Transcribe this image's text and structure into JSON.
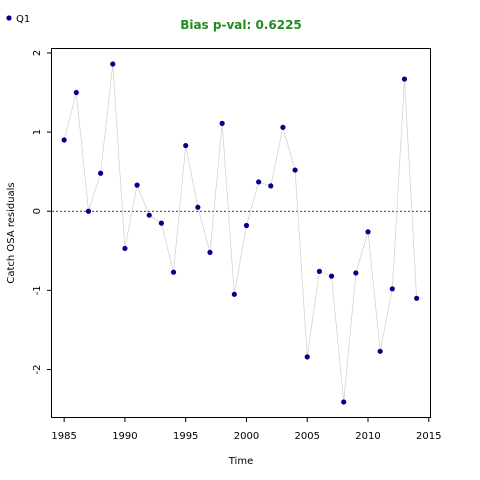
{
  "chart_data": {
    "type": "scatter",
    "title": "Bias p-val: 0.6225",
    "title_color": "#228B22",
    "xlabel": "Time",
    "ylabel": "Catch OSA residuals",
    "xlim": [
      1984,
      2015.1
    ],
    "ylim": [
      -2.6,
      2.05
    ],
    "x_ticks": [
      1985,
      1990,
      1995,
      2000,
      2005,
      2010,
      2015
    ],
    "y_ticks": [
      -2,
      -1,
      0,
      1,
      2
    ],
    "reference_line": 0,
    "grid": false,
    "legend": {
      "placement": "top-left",
      "entries": [
        {
          "name": "Q1",
          "color": "#00008B"
        }
      ]
    },
    "line_color": "#d3d3d3",
    "point_color": "#00008B",
    "series": [
      {
        "name": "Q1",
        "x": [
          1985,
          1986,
          1987,
          1988,
          1989,
          1990,
          1991,
          1992,
          1993,
          1994,
          1995,
          1996,
          1997,
          1998,
          1999,
          2000,
          2001,
          2002,
          2003,
          2004,
          2005,
          2006,
          2007,
          2008,
          2009,
          2010,
          2011,
          2012,
          2013,
          2014
        ],
        "y": [
          0.9,
          1.5,
          0.0,
          0.48,
          1.86,
          -0.47,
          0.33,
          -0.05,
          -0.15,
          -0.77,
          0.83,
          0.05,
          -0.52,
          1.11,
          -1.05,
          -0.18,
          0.37,
          0.32,
          1.06,
          0.52,
          -1.84,
          -0.76,
          -0.82,
          -2.41,
          -0.78,
          -0.26,
          -1.77,
          -0.98,
          1.67,
          -1.1
        ]
      }
    ]
  }
}
